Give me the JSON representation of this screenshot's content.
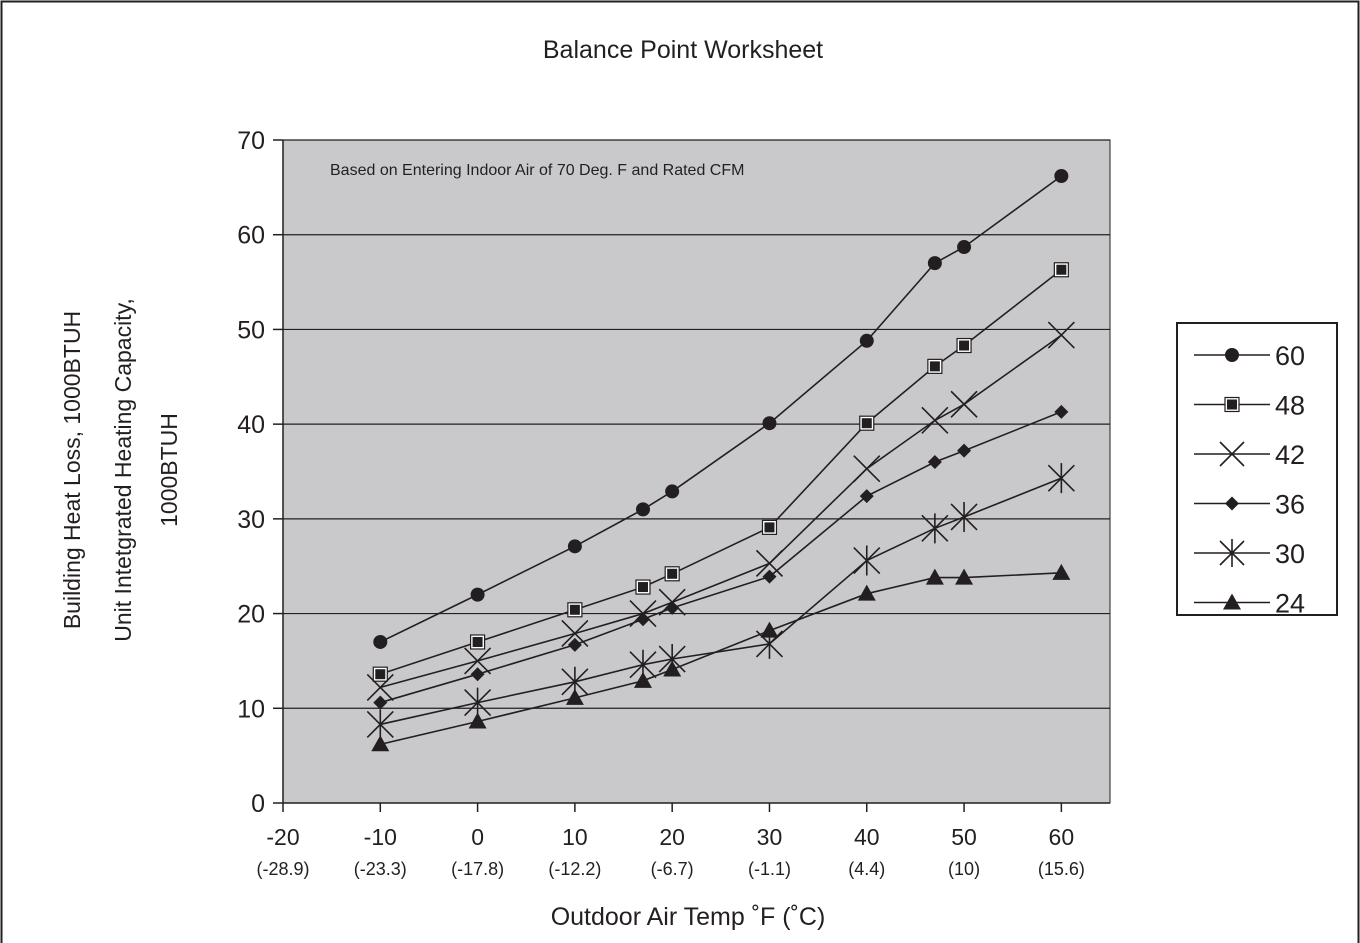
{
  "chart_data": {
    "type": "line",
    "title": "Balance Point Worksheet",
    "annotation": "Based on Entering Indoor Air of 70 Deg. F and Rated CFM",
    "xlabel": "Outdoor Air Temp ˚F (˚C)",
    "ylabel_lines": [
      "Building Heat Loss, 1000BTUH",
      "Unit Intetgrated Heating Capacity,",
      "1000BTUH"
    ],
    "xlim": [
      -20,
      65
    ],
    "ylim": [
      0,
      70
    ],
    "x_ticks": [
      {
        "value": -20,
        "label": "-20",
        "sublabel": "(-28.9)"
      },
      {
        "value": -10,
        "label": "-10",
        "sublabel": "(-23.3)"
      },
      {
        "value": 0,
        "label": "0",
        "sublabel": "(-17.8)"
      },
      {
        "value": 10,
        "label": "10",
        "sublabel": "(-12.2)"
      },
      {
        "value": 20,
        "label": "20",
        "sublabel": "(-6.7)"
      },
      {
        "value": 30,
        "label": "30",
        "sublabel": "(-1.1)"
      },
      {
        "value": 40,
        "label": "40",
        "sublabel": "(4.4)"
      },
      {
        "value": 50,
        "label": "50",
        "sublabel": "(10)"
      },
      {
        "value": 60,
        "label": "60",
        "sublabel": "(15.6)"
      }
    ],
    "y_ticks": [
      0,
      10,
      20,
      30,
      40,
      50,
      60,
      70
    ],
    "grid": "horizontal",
    "legend_position": "right",
    "plot_background": "#c9c9cc",
    "line_color": "#231f20",
    "x": [
      -10,
      0,
      10,
      17,
      20,
      30,
      40,
      47,
      50,
      60
    ],
    "series": [
      {
        "name": "60",
        "marker": "circle",
        "values": [
          17.0,
          22.0,
          27.1,
          31.0,
          32.9,
          40.1,
          48.8,
          57.0,
          58.7,
          66.2
        ]
      },
      {
        "name": "48",
        "marker": "square",
        "values": [
          13.6,
          17.0,
          20.4,
          22.8,
          24.2,
          29.1,
          40.1,
          46.1,
          48.3,
          56.3
        ]
      },
      {
        "name": "42",
        "marker": "x",
        "values": [
          12.2,
          15.0,
          17.9,
          20.0,
          21.2,
          25.3,
          35.3,
          40.4,
          42.1,
          49.4
        ]
      },
      {
        "name": "36",
        "marker": "diamond",
        "values": [
          10.6,
          13.6,
          16.7,
          19.4,
          20.6,
          23.9,
          32.4,
          36.0,
          37.2,
          41.3
        ]
      },
      {
        "name": "30",
        "marker": "asterisk",
        "values": [
          8.3,
          10.6,
          12.8,
          14.6,
          15.2,
          16.8,
          25.6,
          29.0,
          30.2,
          34.3
        ]
      },
      {
        "name": "24",
        "marker": "triangle",
        "values": [
          6.2,
          8.6,
          11.1,
          12.9,
          14.1,
          18.2,
          22.1,
          23.8,
          23.8,
          24.3
        ]
      }
    ]
  }
}
